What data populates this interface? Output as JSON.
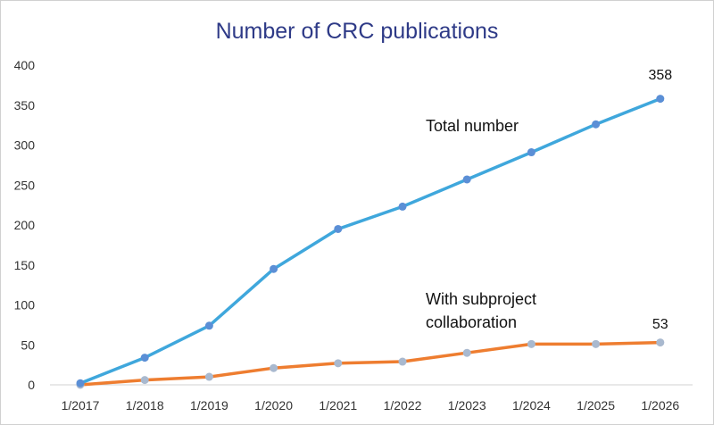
{
  "chart_data": {
    "type": "line",
    "title": "Number of CRC publications",
    "xlabel": "",
    "ylabel": "",
    "categories": [
      "1/2017",
      "1/2018",
      "1/2019",
      "1/2020",
      "1/2021",
      "1/2022",
      "1/2023",
      "1/2024",
      "1/2025",
      "1/2026"
    ],
    "ylim": [
      0,
      400
    ],
    "yticks": [
      0,
      50,
      100,
      150,
      200,
      250,
      300,
      350,
      400
    ],
    "grid": false,
    "legend": "none",
    "series": [
      {
        "name": "Total number",
        "color": "#3fa7dc",
        "marker_color": "#5b8fd6",
        "values": [
          2,
          34,
          74,
          145,
          195,
          223,
          257,
          291,
          326,
          358
        ],
        "end_label": "358"
      },
      {
        "name": "With subproject collaboration",
        "name_lines": [
          "With subproject",
          "collaboration"
        ],
        "color": "#ee7d30",
        "marker_color": "#a9b9cf",
        "values": [
          0,
          6,
          10,
          21,
          27,
          29,
          40,
          51,
          51,
          53
        ],
        "end_label": "53"
      }
    ]
  }
}
